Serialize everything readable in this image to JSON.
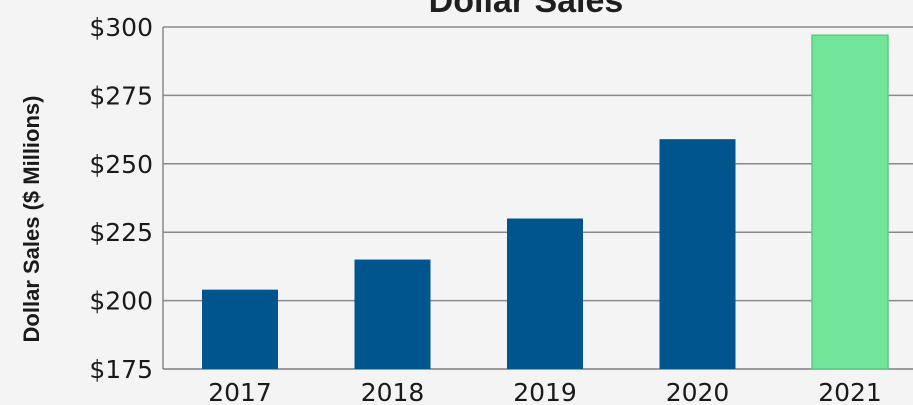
{
  "chart_data": {
    "type": "bar",
    "title": "Dollar Sales",
    "xlabel": "",
    "ylabel": "Dollar Sales ($ Millions)",
    "categories": [
      "2017",
      "2018",
      "2019",
      "2020",
      "2021"
    ],
    "values": [
      204,
      215,
      230,
      259,
      297
    ],
    "ylim": [
      175,
      300
    ],
    "yticks": [
      175,
      200,
      225,
      250,
      275,
      300
    ],
    "ytick_labels": [
      "$175",
      "$200",
      "$225",
      "$250",
      "$275",
      "$300"
    ],
    "grid": true,
    "legend": "none",
    "colors": [
      "#00558c",
      "#00558c",
      "#00558c",
      "#00558c",
      "#72e59a"
    ]
  }
}
